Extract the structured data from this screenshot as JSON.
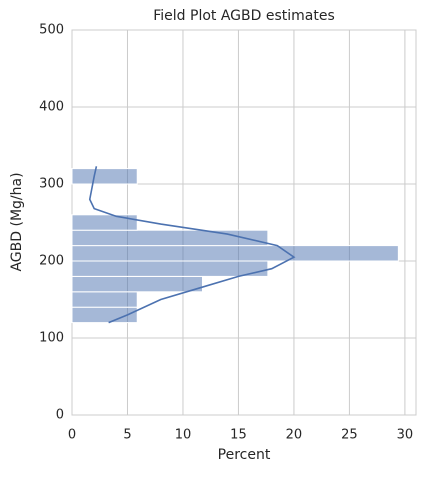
{
  "chart_data": {
    "type": "histogram",
    "orientation": "horizontal",
    "title": "Field Plot AGBD estimates",
    "xlabel": "Percent",
    "ylabel": "AGBD (Mg/ha)",
    "bins": [
      120,
      140,
      160,
      180,
      200,
      220,
      240,
      260,
      280,
      300,
      320
    ],
    "values": [
      5.88,
      5.88,
      11.76,
      17.65,
      29.41,
      17.65,
      5.88,
      0,
      0,
      5.88
    ],
    "color": "#4c72b0",
    "kde": {
      "agbd": [
        120,
        130,
        150,
        165,
        180,
        190,
        205,
        220,
        235,
        248,
        258,
        268,
        280,
        295,
        310,
        323
      ],
      "percent": [
        3.3,
        5,
        8,
        11.5,
        15,
        18,
        20,
        18.5,
        14,
        8,
        4,
        2,
        1.6,
        1.8,
        2,
        2.2
      ]
    },
    "xlim": [
      0,
      31
    ],
    "ylim": [
      0,
      500
    ],
    "xticks": [
      0,
      5,
      10,
      15,
      20,
      25,
      30
    ],
    "yticks": [
      0,
      100,
      200,
      300,
      400,
      500
    ],
    "grid": true
  }
}
